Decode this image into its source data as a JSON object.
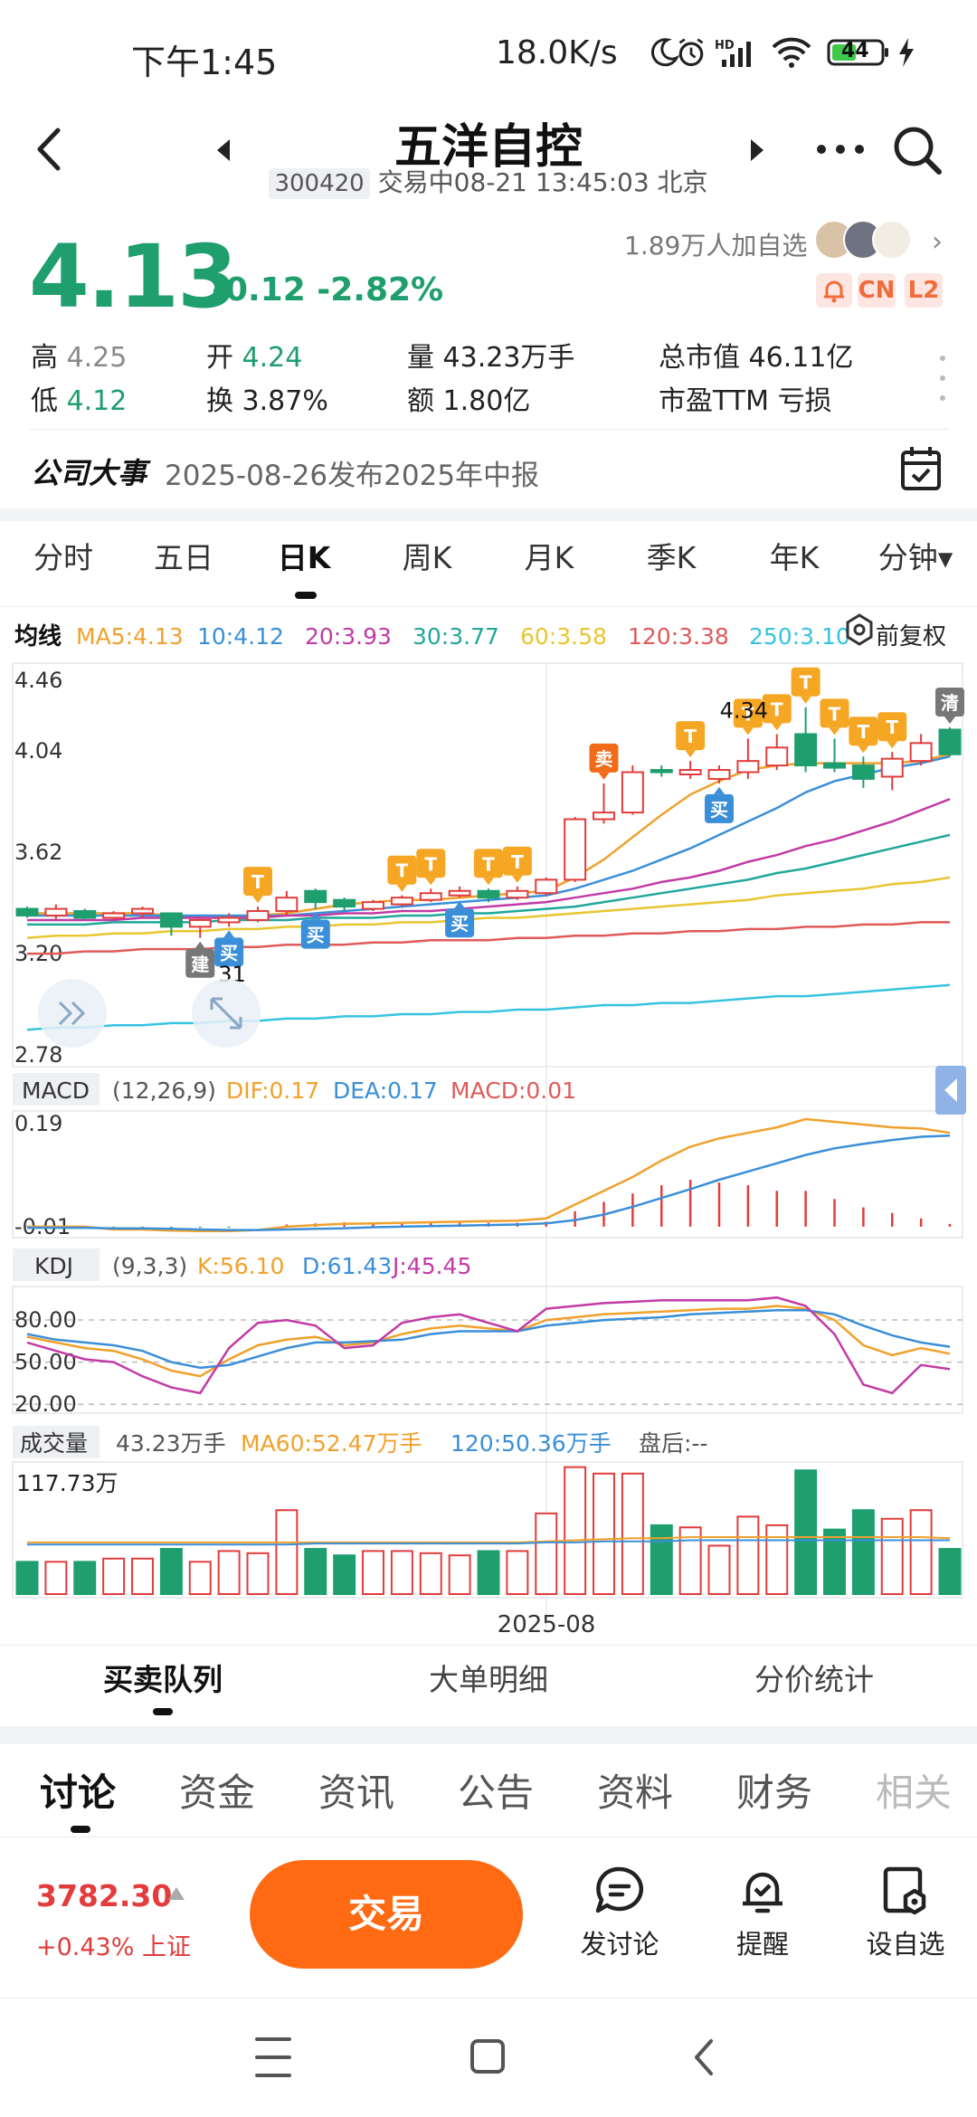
{
  "status_bar": {
    "time": "下午1:45",
    "net_speed": "18.0K/s",
    "battery": "44"
  },
  "header": {
    "stock_name": "五洋自控",
    "stock_code": "300420",
    "trade_status": "交易中08-21 13:45:03 北京"
  },
  "quote": {
    "price": "4.13",
    "change": "-0.12 -2.82%",
    "watchers": "1.89万人加自选",
    "badges": [
      "CN",
      "L2"
    ],
    "stats": {
      "high_label": "高",
      "high": "4.25",
      "low_label": "低",
      "low": "4.12",
      "open_label": "开",
      "open": "4.24",
      "turnover_label": "换",
      "turnover": "3.87%",
      "volume_label": "量",
      "volume": "43.23万手",
      "amount_label": "额",
      "amount": "1.80亿",
      "mktcap_label": "总市值",
      "mktcap": "46.11亿",
      "pe_label": "市盈TTM",
      "pe": "亏损"
    }
  },
  "events": {
    "label": "公司大事",
    "text": "2025-08-26发布2025年中报"
  },
  "period_tabs": [
    "分时",
    "五日",
    "日K",
    "周K",
    "月K",
    "季K",
    "年K",
    "分钟▾"
  ],
  "active_period": 2,
  "chart_data": {
    "type": "candlestick",
    "ma_legend": {
      "title": "均线",
      "items": [
        {
          "label": "MA5:4.13",
          "color": "#f0a12c"
        },
        {
          "label": "10:4.12",
          "color": "#3a8fd8"
        },
        {
          "label": "20:3.93",
          "color": "#c23ba6"
        },
        {
          "label": "30:3.77",
          "color": "#1fa89a"
        },
        {
          "label": "60:3.58",
          "color": "#e8c630"
        },
        {
          "label": "120:3.38",
          "color": "#e05a5a"
        },
        {
          "label": "250:3.10",
          "color": "#36c3e0"
        }
      ],
      "adjust_label": "前复权"
    },
    "price_axis": [
      "4.46",
      "4.04",
      "3.62",
      "3.20",
      "2.78"
    ],
    "ylim": [
      2.78,
      4.46
    ],
    "max_label": "4.34",
    "min_label": "31",
    "candles": [
      {
        "o": 3.44,
        "h": 3.45,
        "l": 3.4,
        "c": 3.41
      },
      {
        "o": 3.41,
        "h": 3.46,
        "l": 3.39,
        "c": 3.44
      },
      {
        "o": 3.43,
        "h": 3.44,
        "l": 3.39,
        "c": 3.4
      },
      {
        "o": 3.4,
        "h": 3.43,
        "l": 3.39,
        "c": 3.42
      },
      {
        "o": 3.42,
        "h": 3.45,
        "l": 3.4,
        "c": 3.44
      },
      {
        "o": 3.42,
        "h": 3.42,
        "l": 3.32,
        "c": 3.36
      },
      {
        "o": 3.36,
        "h": 3.4,
        "l": 3.31,
        "c": 3.39
      },
      {
        "o": 3.38,
        "h": 3.42,
        "l": 3.36,
        "c": 3.4
      },
      {
        "o": 3.39,
        "h": 3.45,
        "l": 3.38,
        "c": 3.43
      },
      {
        "o": 3.43,
        "h": 3.52,
        "l": 3.41,
        "c": 3.49
      },
      {
        "o": 3.52,
        "h": 3.53,
        "l": 3.44,
        "c": 3.47
      },
      {
        "o": 3.48,
        "h": 3.49,
        "l": 3.43,
        "c": 3.45
      },
      {
        "o": 3.44,
        "h": 3.48,
        "l": 3.43,
        "c": 3.47
      },
      {
        "o": 3.46,
        "h": 3.5,
        "l": 3.45,
        "c": 3.49
      },
      {
        "o": 3.48,
        "h": 3.53,
        "l": 3.47,
        "c": 3.51
      },
      {
        "o": 3.5,
        "h": 3.54,
        "l": 3.49,
        "c": 3.52
      },
      {
        "o": 3.52,
        "h": 3.53,
        "l": 3.47,
        "c": 3.49
      },
      {
        "o": 3.49,
        "h": 3.54,
        "l": 3.48,
        "c": 3.52
      },
      {
        "o": 3.51,
        "h": 3.58,
        "l": 3.5,
        "c": 3.57
      },
      {
        "o": 3.57,
        "h": 3.85,
        "l": 3.56,
        "c": 3.84
      },
      {
        "o": 3.84,
        "h": 4.0,
        "l": 3.82,
        "c": 3.87
      },
      {
        "o": 3.87,
        "h": 4.08,
        "l": 3.86,
        "c": 4.05
      },
      {
        "o": 4.06,
        "h": 4.08,
        "l": 4.03,
        "c": 4.05
      },
      {
        "o": 4.04,
        "h": 4.1,
        "l": 4.02,
        "c": 4.06
      },
      {
        "o": 4.02,
        "h": 4.08,
        "l": 4.0,
        "c": 4.06
      },
      {
        "o": 4.05,
        "h": 4.2,
        "l": 4.02,
        "c": 4.1
      },
      {
        "o": 4.08,
        "h": 4.22,
        "l": 4.06,
        "c": 4.16
      },
      {
        "o": 4.22,
        "h": 4.34,
        "l": 4.05,
        "c": 4.08
      },
      {
        "o": 4.09,
        "h": 4.2,
        "l": 4.05,
        "c": 4.07
      },
      {
        "o": 4.08,
        "h": 4.12,
        "l": 3.98,
        "c": 4.02
      },
      {
        "o": 4.03,
        "h": 4.14,
        "l": 3.97,
        "c": 4.11
      },
      {
        "o": 4.1,
        "h": 4.22,
        "l": 4.08,
        "c": 4.18
      },
      {
        "o": 4.24,
        "h": 4.25,
        "l": 4.12,
        "c": 4.13
      }
    ],
    "ma_lines": {
      "ma5": [
        3.42,
        3.42,
        3.42,
        3.42,
        3.42,
        3.41,
        3.4,
        3.4,
        3.41,
        3.42,
        3.44,
        3.46,
        3.47,
        3.48,
        3.48,
        3.49,
        3.5,
        3.51,
        3.52,
        3.58,
        3.66,
        3.76,
        3.86,
        3.95,
        4.01,
        4.06,
        4.08,
        4.09,
        4.09,
        4.09,
        4.09,
        4.1,
        4.13
      ],
      "ma10": [
        3.41,
        3.41,
        3.41,
        3.41,
        3.41,
        3.41,
        3.41,
        3.41,
        3.41,
        3.41,
        3.42,
        3.43,
        3.44,
        3.45,
        3.46,
        3.47,
        3.48,
        3.49,
        3.5,
        3.53,
        3.57,
        3.61,
        3.66,
        3.71,
        3.77,
        3.83,
        3.89,
        3.96,
        4.01,
        4.04,
        4.07,
        4.09,
        4.12
      ],
      "ma20": [
        3.39,
        3.39,
        3.39,
        3.39,
        3.4,
        3.4,
        3.4,
        3.4,
        3.4,
        3.41,
        3.41,
        3.42,
        3.42,
        3.43,
        3.43,
        3.44,
        3.45,
        3.46,
        3.47,
        3.49,
        3.51,
        3.53,
        3.56,
        3.58,
        3.61,
        3.65,
        3.68,
        3.72,
        3.75,
        3.79,
        3.83,
        3.88,
        3.93
      ],
      "ma30": [
        3.37,
        3.37,
        3.37,
        3.38,
        3.38,
        3.38,
        3.38,
        3.39,
        3.39,
        3.39,
        3.4,
        3.4,
        3.4,
        3.41,
        3.41,
        3.42,
        3.42,
        3.43,
        3.44,
        3.45,
        3.47,
        3.49,
        3.51,
        3.53,
        3.55,
        3.57,
        3.6,
        3.62,
        3.65,
        3.68,
        3.71,
        3.74,
        3.77
      ],
      "ma60": [
        3.31,
        3.32,
        3.32,
        3.33,
        3.33,
        3.34,
        3.34,
        3.35,
        3.35,
        3.36,
        3.36,
        3.37,
        3.37,
        3.38,
        3.38,
        3.39,
        3.4,
        3.4,
        3.41,
        3.42,
        3.43,
        3.44,
        3.45,
        3.46,
        3.47,
        3.48,
        3.5,
        3.51,
        3.52,
        3.53,
        3.55,
        3.56,
        3.58
      ],
      "ma120": [
        3.24,
        3.24,
        3.25,
        3.25,
        3.26,
        3.26,
        3.26,
        3.27,
        3.27,
        3.28,
        3.28,
        3.28,
        3.29,
        3.29,
        3.3,
        3.3,
        3.3,
        3.31,
        3.31,
        3.32,
        3.32,
        3.33,
        3.33,
        3.34,
        3.34,
        3.35,
        3.35,
        3.36,
        3.36,
        3.37,
        3.37,
        3.38,
        3.38
      ],
      "ma250": [
        2.9,
        2.91,
        2.91,
        2.92,
        2.92,
        2.93,
        2.93,
        2.94,
        2.94,
        2.95,
        2.95,
        2.96,
        2.96,
        2.97,
        2.97,
        2.98,
        2.98,
        2.99,
        2.99,
        3.0,
        3.01,
        3.01,
        3.02,
        3.02,
        3.03,
        3.04,
        3.05,
        3.05,
        3.06,
        3.07,
        3.08,
        3.09,
        3.1
      ]
    },
    "markers": [
      {
        "i": 8,
        "type": "T",
        "pos": "above"
      },
      {
        "i": 13,
        "type": "T",
        "pos": "above"
      },
      {
        "i": 14,
        "type": "T",
        "pos": "above"
      },
      {
        "i": 16,
        "type": "T",
        "pos": "above"
      },
      {
        "i": 17,
        "type": "T",
        "pos": "above"
      },
      {
        "i": 20,
        "type": "卖",
        "pos": "above"
      },
      {
        "i": 23,
        "type": "T",
        "pos": "above"
      },
      {
        "i": 25,
        "type": "T",
        "pos": "above"
      },
      {
        "i": 26,
        "type": "T",
        "pos": "above"
      },
      {
        "i": 27,
        "type": "T",
        "pos": "above"
      },
      {
        "i": 28,
        "type": "T",
        "pos": "above"
      },
      {
        "i": 29,
        "type": "T",
        "pos": "above"
      },
      {
        "i": 30,
        "type": "T",
        "pos": "above"
      },
      {
        "i": 32,
        "type": "清",
        "pos": "above"
      },
      {
        "i": 6,
        "type": "建",
        "pos": "below"
      },
      {
        "i": 7,
        "type": "买",
        "pos": "below"
      },
      {
        "i": 10,
        "type": "买",
        "pos": "below"
      },
      {
        "i": 15,
        "type": "买",
        "pos": "below"
      },
      {
        "i": 24,
        "type": "买",
        "pos": "below"
      }
    ],
    "x_label": "2025-08",
    "macd": {
      "title": "MACD",
      "params": "(12,26,9)",
      "dif_label": "DIF:0.17",
      "dea_label": "DEA:0.17",
      "macd_label": "MACD:0.01",
      "axis": [
        "0.19",
        "-0.01"
      ],
      "ylim": [
        -0.01,
        0.19
      ],
      "dif": [
        0.0,
        0.0,
        0.0,
        -0.005,
        -0.005,
        -0.007,
        -0.008,
        -0.008,
        -0.006,
        0.0,
        0.003,
        0.005,
        0.006,
        0.007,
        0.008,
        0.009,
        0.01,
        0.011,
        0.015,
        0.04,
        0.065,
        0.09,
        0.12,
        0.145,
        0.16,
        0.17,
        0.18,
        0.195,
        0.19,
        0.185,
        0.18,
        0.178,
        0.17
      ],
      "dea": [
        -0.002,
        -0.002,
        -0.002,
        -0.003,
        -0.003,
        -0.004,
        -0.005,
        -0.006,
        -0.006,
        -0.005,
        -0.004,
        -0.003,
        -0.001,
        0.0,
        0.001,
        0.002,
        0.003,
        0.004,
        0.006,
        0.012,
        0.022,
        0.036,
        0.052,
        0.068,
        0.085,
        0.1,
        0.115,
        0.13,
        0.142,
        0.15,
        0.157,
        0.163,
        0.165
      ],
      "hist": [
        0.001,
        0.001,
        0.001,
        -0.001,
        -0.001,
        -0.002,
        -0.002,
        -0.002,
        0.0,
        0.004,
        0.006,
        0.008,
        0.006,
        0.007,
        0.007,
        0.007,
        0.007,
        0.007,
        0.009,
        0.028,
        0.045,
        0.06,
        0.075,
        0.085,
        0.08,
        0.075,
        0.065,
        0.065,
        0.05,
        0.035,
        0.025,
        0.015,
        0.005
      ]
    },
    "kdj": {
      "title": "KDJ",
      "params": "(9,3,3)",
      "k_label": "K:56.10",
      "d_label": "D:61.43",
      "j_label": "J:45.45",
      "axis": [
        "80.00",
        "50.00",
        "20.00"
      ],
      "ylim": [
        15,
        100
      ],
      "k": [
        68,
        64,
        60,
        58,
        52,
        44,
        40,
        52,
        62,
        66,
        68,
        62,
        64,
        70,
        74,
        76,
        74,
        72,
        80,
        82,
        84,
        85,
        86,
        87,
        88,
        88,
        90,
        88,
        80,
        62,
        55,
        60,
        56
      ],
      "d": [
        70,
        66,
        64,
        62,
        58,
        50,
        46,
        48,
        54,
        60,
        64,
        64,
        65,
        66,
        70,
        72,
        72,
        72,
        76,
        78,
        80,
        81,
        82,
        84,
        85,
        86,
        87,
        87,
        84,
        76,
        69,
        64,
        61
      ],
      "j": [
        64,
        58,
        52,
        50,
        40,
        32,
        28,
        60,
        78,
        80,
        76,
        60,
        62,
        78,
        82,
        84,
        78,
        72,
        88,
        90,
        92,
        93,
        94,
        94,
        94,
        94,
        96,
        90,
        70,
        34,
        28,
        48,
        45
      ]
    },
    "volume": {
      "title": "成交量",
      "vol_label": "43.23万手",
      "ma60_label": "MA60:52.47万手",
      "ma120_label": "120:50.36万手",
      "after_label": "盘后:--",
      "axis": [
        "117.73万"
      ],
      "ymax": 117.73,
      "values": [
        30,
        30,
        30,
        33,
        33,
        42,
        30,
        40,
        38,
        78,
        42,
        36,
        40,
        40,
        38,
        36,
        40,
        40,
        75,
        118,
        112,
        112,
        64,
        62,
        45,
        72,
        64,
        115,
        60,
        78,
        70,
        78,
        42
      ],
      "ma60": [
        48,
        48,
        48,
        48,
        48,
        48,
        48,
        48,
        48,
        48,
        48,
        48,
        48,
        48,
        48,
        48,
        48,
        48,
        49,
        50,
        51,
        52,
        52,
        53,
        53,
        53,
        53,
        53,
        53,
        53,
        53,
        53,
        52
      ],
      "ma120": [
        46,
        46,
        46,
        46,
        46,
        46,
        46,
        46,
        46,
        46,
        47,
        47,
        47,
        47,
        47,
        47,
        47,
        47,
        48,
        48,
        49,
        49,
        49,
        50,
        50,
        50,
        50,
        50,
        50,
        50,
        50,
        50,
        50
      ]
    }
  },
  "queue_tabs": [
    "买卖队列",
    "大单明细",
    "分价统计"
  ],
  "info_tabs": [
    "讨论",
    "资金",
    "资讯",
    "公告",
    "资料",
    "财务",
    "相关"
  ],
  "index": {
    "value": "3782.30",
    "change": "+0.43% 上证"
  },
  "trade_button": "交易",
  "actions": [
    {
      "label": "发讨论",
      "icon": "comment-icon"
    },
    {
      "label": "提醒",
      "icon": "bell-icon"
    },
    {
      "label": "设自选",
      "icon": "add-watch-icon"
    }
  ],
  "colors": {
    "up": "#e23c3c",
    "down": "#1f9e6e",
    "accent": "#ff6a13"
  }
}
